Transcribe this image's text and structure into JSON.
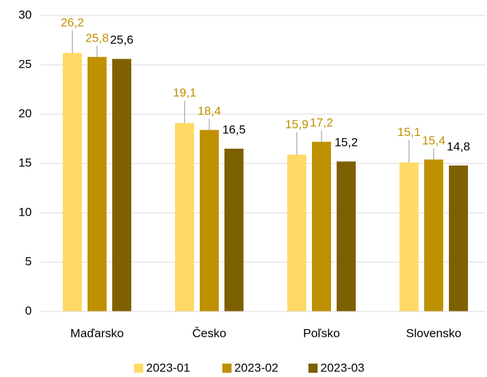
{
  "chart_data": {
    "type": "bar",
    "categories": [
      "Maďarsko",
      "Česko",
      "Poľsko",
      "Slovensko"
    ],
    "series": [
      {
        "name": "2023-01",
        "color": "#FFD966",
        "label_color": "#BF9000",
        "values": [
          26.2,
          19.1,
          15.9,
          15.1
        ],
        "value_labels": [
          "26,2",
          "19,1",
          "15,9",
          "15,1"
        ]
      },
      {
        "name": "2023-02",
        "color": "#BF9000",
        "label_color": "#BF9000",
        "values": [
          25.8,
          18.4,
          17.2,
          15.4
        ],
        "value_labels": [
          "25,8",
          "18,4",
          "17,2",
          "15,4"
        ]
      },
      {
        "name": "2023-03",
        "color": "#7F6000",
        "label_color": "#000000",
        "values": [
          25.6,
          16.5,
          15.2,
          14.8
        ],
        "value_labels": [
          "25,6",
          "16,5",
          "15,2",
          "14,8"
        ]
      }
    ],
    "ylim": [
      0,
      30
    ],
    "yticks": [
      0,
      5,
      10,
      15,
      20,
      25,
      30
    ],
    "grid": true,
    "legend": "bottom"
  }
}
